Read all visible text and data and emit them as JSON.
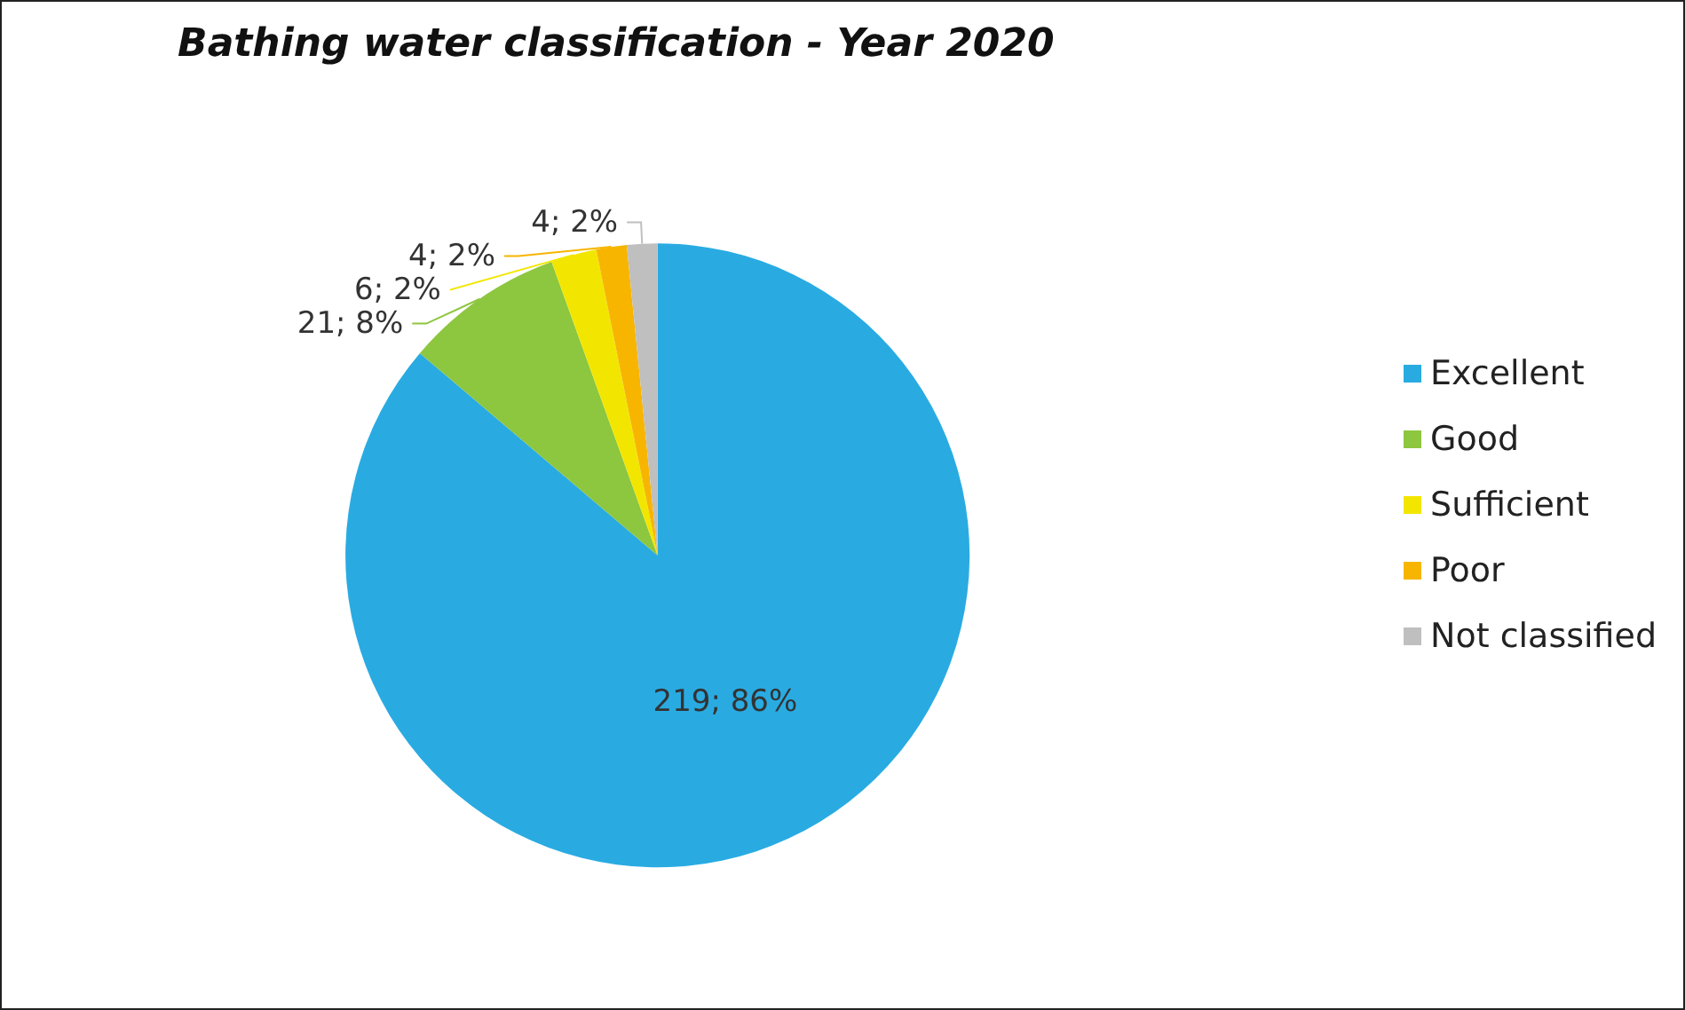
{
  "chart_data": {
    "type": "pie",
    "title": "Bathing water classification - Year 2020",
    "categories": [
      "Excellent",
      "Good",
      "Sufficient",
      "Poor",
      "Not classified"
    ],
    "values": [
      219,
      21,
      6,
      4,
      4
    ],
    "value_labels": [
      "219; 86%",
      "21; 8%",
      "6; 2%",
      "4; 2%",
      "4; 2%"
    ],
    "colors": [
      "#29abe2",
      "#8dc63f",
      "#f2e600",
      "#f7b500",
      "#bfbfbf"
    ],
    "legend": "right"
  }
}
